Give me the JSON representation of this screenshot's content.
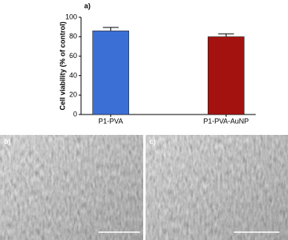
{
  "chart_data": {
    "type": "bar",
    "panel_label": "a)",
    "ylabel": "Cell viability (% of control)",
    "categories": [
      "P1-PVA",
      "P1-PVA-AuNP"
    ],
    "values": [
      86,
      80
    ],
    "errors": [
      3.5,
      3
    ],
    "colors": [
      "#3b6fd6",
      "#a4120f"
    ],
    "ylim": [
      0,
      100
    ],
    "yticks": [
      0,
      20,
      40,
      60,
      80,
      100
    ]
  },
  "panels": [
    {
      "label": "b)"
    },
    {
      "label": "c)"
    }
  ]
}
